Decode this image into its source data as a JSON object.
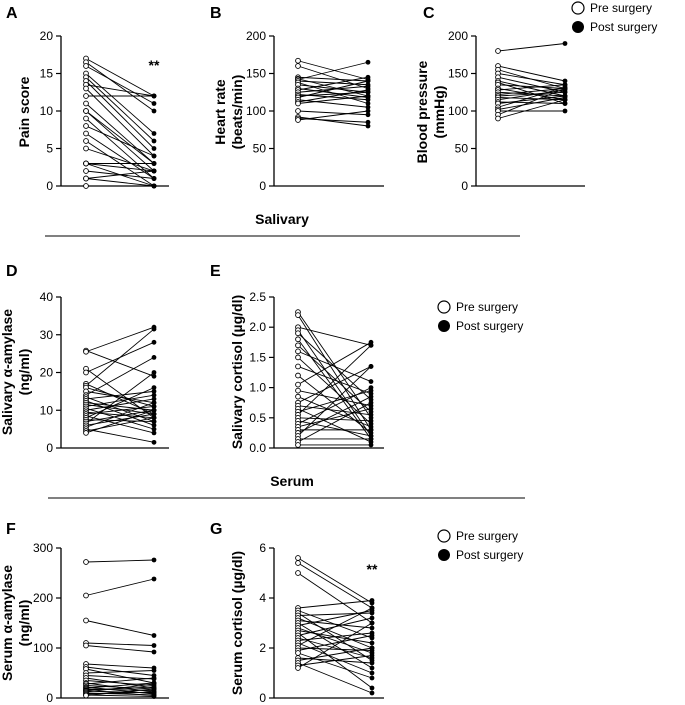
{
  "sections": {
    "salivary": "Salivary",
    "serum": "Serum"
  },
  "legend": {
    "pre": "Pre surgery",
    "post": "Post surgery"
  },
  "chart_data": [
    {
      "id": "A",
      "letter": "A",
      "type": "line",
      "ylabel": [
        "Pain score"
      ],
      "ylim": [
        0,
        20
      ],
      "ticks": [
        0,
        5,
        10,
        15,
        20
      ],
      "xlabels": [
        "Pre surgery",
        "Post surgery"
      ],
      "significance": "**",
      "pairs": [
        [
          17,
          12
        ],
        [
          16.5,
          10
        ],
        [
          16,
          11
        ],
        [
          15,
          7
        ],
        [
          14.5,
          6
        ],
        [
          14,
          5
        ],
        [
          13.5,
          12
        ],
        [
          13,
          4
        ],
        [
          12,
          12
        ],
        [
          11,
          3
        ],
        [
          10,
          3
        ],
        [
          10,
          2
        ],
        [
          9,
          1
        ],
        [
          8,
          4
        ],
        [
          7,
          1
        ],
        [
          6,
          0
        ],
        [
          5,
          2
        ],
        [
          3,
          3
        ],
        [
          3,
          2
        ],
        [
          3,
          0
        ],
        [
          2,
          1
        ],
        [
          1,
          2
        ],
        [
          1,
          0
        ],
        [
          0,
          0
        ]
      ]
    },
    {
      "id": "B",
      "letter": "B",
      "type": "line",
      "ylabel": [
        "Heart rate",
        "(beats/min)"
      ],
      "ylim": [
        0,
        200
      ],
      "ticks": [
        0,
        50,
        100,
        150,
        200
      ],
      "xlabels": [
        "Pre surgery",
        "Post surgery"
      ],
      "pairs": [
        [
          167,
          142
        ],
        [
          160,
          130
        ],
        [
          145,
          140
        ],
        [
          143,
          120
        ],
        [
          142,
          165
        ],
        [
          140,
          135
        ],
        [
          138,
          110
        ],
        [
          135,
          125
        ],
        [
          130,
          118
        ],
        [
          128,
          145
        ],
        [
          125,
          133
        ],
        [
          122,
          115
        ],
        [
          120,
          125
        ],
        [
          118,
          140
        ],
        [
          115,
          105
        ],
        [
          112,
          128
        ],
        [
          110,
          120
        ],
        [
          100,
          95
        ],
        [
          92,
          80
        ],
        [
          90,
          85
        ],
        [
          88,
          100
        ]
      ]
    },
    {
      "id": "C",
      "letter": "C",
      "type": "line",
      "ylabel": [
        "Blood pressure",
        "(mmHg)"
      ],
      "ylim": [
        0,
        200
      ],
      "ticks": [
        0,
        50,
        100,
        150,
        200
      ],
      "xlabels": [
        "Pre surgery",
        "Post surgery"
      ],
      "pairs": [
        [
          180,
          190
        ],
        [
          160,
          140
        ],
        [
          155,
          130
        ],
        [
          150,
          135
        ],
        [
          145,
          125
        ],
        [
          140,
          120
        ],
        [
          138,
          110
        ],
        [
          135,
          130
        ],
        [
          130,
          115
        ],
        [
          128,
          135
        ],
        [
          125,
          120
        ],
        [
          122,
          130
        ],
        [
          120,
          125
        ],
        [
          118,
          115
        ],
        [
          115,
          128
        ],
        [
          112,
          110
        ],
        [
          110,
          120
        ],
        [
          105,
          132
        ],
        [
          102,
          118
        ],
        [
          100,
          100
        ],
        [
          95,
          130
        ],
        [
          90,
          115
        ]
      ]
    },
    {
      "id": "D",
      "letter": "D",
      "type": "line",
      "ylabel": [
        "Salivary α-amylase",
        "(ng/ml)"
      ],
      "ylim": [
        0,
        40
      ],
      "ticks": [
        0,
        10,
        20,
        30,
        40
      ],
      "xlabels": [
        "Pre surgery",
        "Post surgery"
      ],
      "pairs": [
        [
          25.8,
          19
        ],
        [
          25.5,
          32
        ],
        [
          21,
          8
        ],
        [
          20,
          28
        ],
        [
          17,
          9
        ],
        [
          16.5,
          31.5
        ],
        [
          16,
          11
        ],
        [
          15,
          12
        ],
        [
          14,
          24
        ],
        [
          13.5,
          7
        ],
        [
          13,
          15
        ],
        [
          12.5,
          6
        ],
        [
          12,
          10
        ],
        [
          11.5,
          9
        ],
        [
          11,
          14
        ],
        [
          10.5,
          5
        ],
        [
          10,
          13
        ],
        [
          9.5,
          8
        ],
        [
          9,
          11
        ],
        [
          8.5,
          4
        ],
        [
          8,
          16
        ],
        [
          7.5,
          7
        ],
        [
          7,
          10
        ],
        [
          6.5,
          20
        ],
        [
          6,
          9
        ],
        [
          5.5,
          12
        ],
        [
          5,
          1.5
        ],
        [
          4.5,
          8
        ],
        [
          4,
          10
        ]
      ]
    },
    {
      "id": "E",
      "letter": "E",
      "type": "line",
      "ylabel": [
        "Salivary cortisol (µg/dl)"
      ],
      "ylim": [
        0,
        2.5
      ],
      "ticks": [
        "0.0",
        "0.5",
        "1.0",
        "1.5",
        "2.0",
        "2.5"
      ],
      "xlabels": [
        "Pre surgery",
        "Post surgery"
      ],
      "pairs": [
        [
          2.25,
          0.5
        ],
        [
          2.2,
          0.3
        ],
        [
          2.0,
          1.7
        ],
        [
          1.95,
          0.2
        ],
        [
          1.9,
          0.8
        ],
        [
          1.8,
          0.15
        ],
        [
          1.7,
          0.6
        ],
        [
          1.6,
          1.1
        ],
        [
          1.5,
          0.4
        ],
        [
          1.35,
          0.9
        ],
        [
          1.2,
          0.25
        ],
        [
          1.05,
          1.75
        ],
        [
          0.95,
          0.7
        ],
        [
          0.85,
          0.35
        ],
        [
          0.75,
          1.35
        ],
        [
          0.7,
          0.55
        ],
        [
          0.65,
          0.1
        ],
        [
          0.6,
          0.95
        ],
        [
          0.55,
          1.7
        ],
        [
          0.5,
          0.45
        ],
        [
          0.45,
          0.2
        ],
        [
          0.4,
          1.0
        ],
        [
          0.35,
          0.65
        ],
        [
          0.3,
          0.3
        ],
        [
          0.25,
          0.85
        ],
        [
          0.2,
          1.35
        ],
        [
          0.15,
          0.15
        ],
        [
          0.1,
          0.75
        ],
        [
          0.05,
          0.05
        ]
      ]
    },
    {
      "id": "F",
      "letter": "F",
      "type": "line",
      "ylabel": [
        "Serum α-amylase",
        "(ng/ml)"
      ],
      "ylim": [
        0,
        300
      ],
      "ticks": [
        0,
        100,
        200,
        300
      ],
      "xlabels": [
        "Pre surgery",
        "Post surgery"
      ],
      "pairs": [
        [
          272,
          276
        ],
        [
          205,
          238
        ],
        [
          155,
          125
        ],
        [
          110,
          105
        ],
        [
          105,
          92
        ],
        [
          68,
          60
        ],
        [
          62,
          45
        ],
        [
          58,
          30
        ],
        [
          50,
          55
        ],
        [
          45,
          38
        ],
        [
          40,
          20
        ],
        [
          35,
          25
        ],
        [
          30,
          12
        ],
        [
          28,
          40
        ],
        [
          25,
          18
        ],
        [
          22,
          8
        ],
        [
          20,
          30
        ],
        [
          18,
          15
        ],
        [
          16,
          22
        ],
        [
          15,
          5
        ],
        [
          14,
          10
        ],
        [
          12,
          28
        ],
        [
          10,
          6
        ],
        [
          8,
          12
        ],
        [
          6,
          3
        ],
        [
          5,
          18
        ]
      ]
    },
    {
      "id": "G",
      "letter": "G",
      "type": "line",
      "ylabel": [
        "Serum cortisol (µg/dl)"
      ],
      "ylim": [
        0,
        6
      ],
      "ticks": [
        0,
        2,
        4,
        6
      ],
      "xlabels": [
        "Pre surgery",
        "Post surgery"
      ],
      "significance": "**",
      "pairs": [
        [
          5.6,
          3.8
        ],
        [
          5.4,
          3.6
        ],
        [
          5.0,
          3.0
        ],
        [
          3.6,
          3.9
        ],
        [
          3.5,
          2.4
        ],
        [
          3.4,
          1.5
        ],
        [
          3.3,
          3.4
        ],
        [
          3.2,
          2.0
        ],
        [
          3.1,
          2.8
        ],
        [
          3.0,
          1.2
        ],
        [
          2.9,
          3.5
        ],
        [
          2.8,
          1.8
        ],
        [
          2.7,
          2.2
        ],
        [
          2.6,
          0.4
        ],
        [
          2.5,
          3.2
        ],
        [
          2.4,
          1.6
        ],
        [
          2.3,
          2.6
        ],
        [
          2.2,
          1.0
        ],
        [
          2.1,
          3.6
        ],
        [
          2.0,
          1.9
        ],
        [
          1.9,
          2.5
        ],
        [
          1.8,
          0.8
        ],
        [
          1.6,
          1.4
        ],
        [
          1.5,
          2.0
        ],
        [
          1.4,
          0.2
        ],
        [
          1.3,
          1.7
        ],
        [
          1.2,
          3.0
        ]
      ]
    }
  ]
}
